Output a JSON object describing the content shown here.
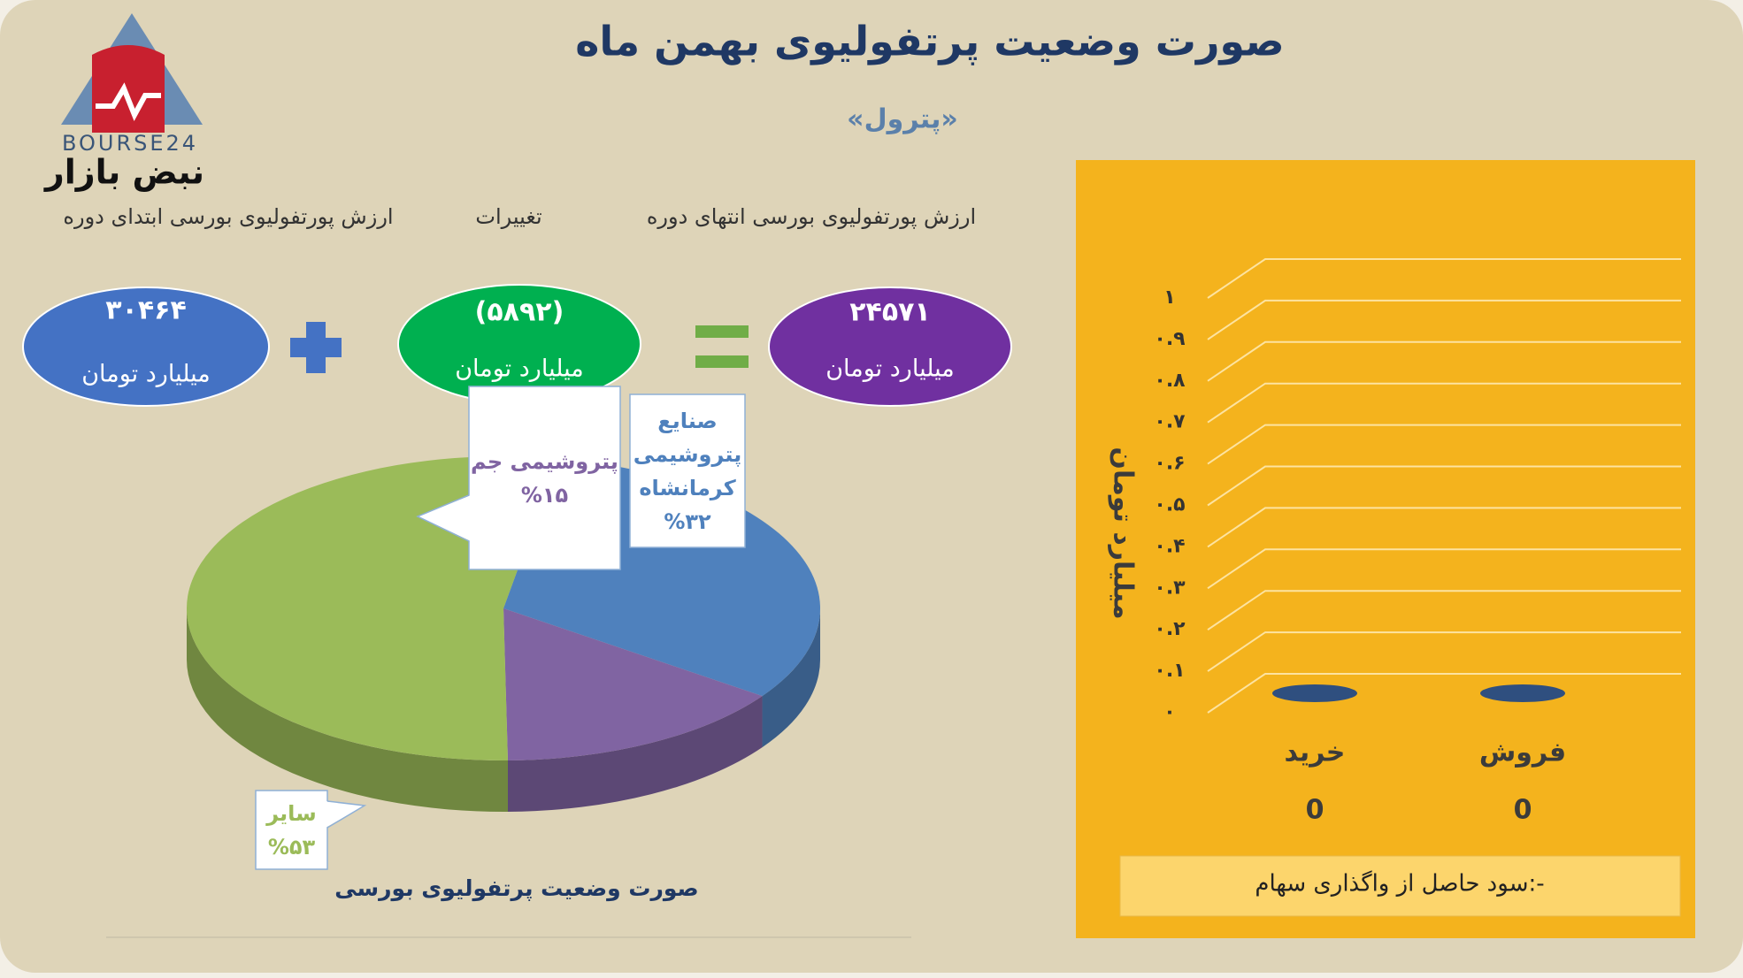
{
  "header": {
    "title": "صورت وضعیت پرتفولیوی بهمن ماه",
    "subtitle": "«پترول»"
  },
  "logo": {
    "brand": "BOURSE24",
    "name": "نبض بازار"
  },
  "equation": {
    "unit": "میلیارد تومان",
    "items": [
      {
        "label": "ارزش پورتفولیوی بورسی ابتدای دوره",
        "value": "۳۰۴۶۴"
      },
      {
        "label": "تغییرات",
        "value": "(۵۸۹۲)"
      },
      {
        "label": "ارزش پورتفولیوی بورسی انتهای دوره",
        "value": "۲۴۵۷۱"
      }
    ]
  },
  "chart_data": [
    {
      "type": "pie",
      "title": "صورت وضعیت پرتفولیوی بورسی",
      "categories": [
        "صنایع پتروشیمی کرمانشاه",
        "پتروشیمی جم",
        "سایر"
      ],
      "values": [
        32,
        15,
        53
      ],
      "value_labels": [
        "%۳۲",
        "%۱۵",
        "%۵۳"
      ],
      "colors": [
        "#4f81bd",
        "#8064a2",
        "#9bbb59"
      ]
    },
    {
      "type": "bar",
      "title": "سود حاصل از واگذاری سهام:-",
      "ylabel": "میلیارد تومان",
      "categories": [
        "خرید",
        "فروش"
      ],
      "values": [
        0,
        0
      ],
      "color": "#2f4f7f",
      "ylim": [
        0,
        1
      ],
      "yticks": [
        {
          "value": 0,
          "label": "۰"
        },
        {
          "value": 0.1,
          "label": "۰.۱"
        },
        {
          "value": 0.2,
          "label": "۰.۲"
        },
        {
          "value": 0.3,
          "label": "۰.۳"
        },
        {
          "value": 0.4,
          "label": "۰.۴"
        },
        {
          "value": 0.5,
          "label": "۰.۵"
        },
        {
          "value": 0.6,
          "label": "۰.۶"
        },
        {
          "value": 0.7,
          "label": "۰.۷"
        },
        {
          "value": 0.8,
          "label": "۰.۸"
        },
        {
          "value": 0.9,
          "label": "۰.۹"
        },
        {
          "value": 1,
          "label": "۱"
        }
      ],
      "grid": true
    }
  ]
}
